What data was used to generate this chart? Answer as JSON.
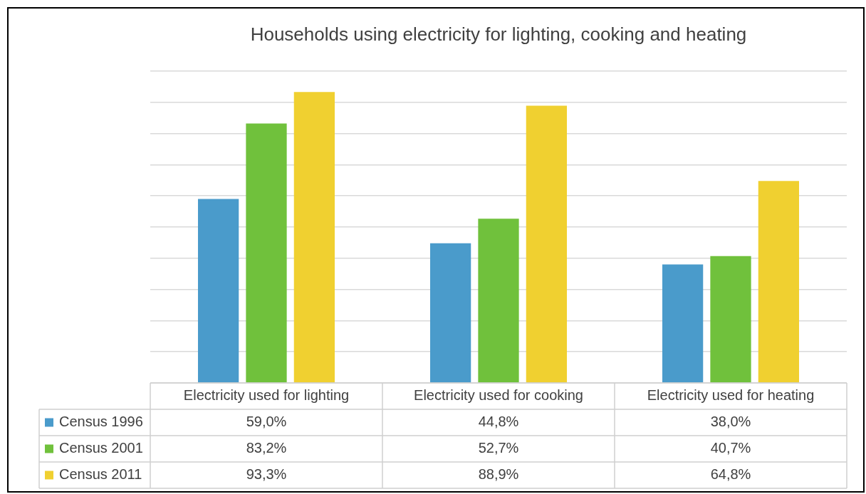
{
  "chart_data": {
    "type": "bar",
    "title": "Households using electricity for lighting, cooking and heating",
    "categories": [
      "Electricity used for lighting",
      "Electricity used for cooking",
      "Electricity used for heating"
    ],
    "series": [
      {
        "name": "Census 1996",
        "color": "#4a9bcb",
        "values": [
          59.0,
          44.8,
          38.0
        ],
        "value_labels": [
          "59,0%",
          "44,8%",
          "38,0%"
        ]
      },
      {
        "name": "Census 2001",
        "color": "#70c13c",
        "values": [
          83.2,
          52.7,
          40.7
        ],
        "value_labels": [
          "83,2%",
          "52,7%",
          "40,7%"
        ]
      },
      {
        "name": "Census 2011",
        "color": "#f0d030",
        "values": [
          93.3,
          88.9,
          64.8
        ],
        "value_labels": [
          "93,3%",
          "88,9%",
          "64,8%"
        ]
      }
    ],
    "ylim": [
      0,
      100
    ],
    "yticks": [
      {
        "value": 0,
        "label": null
      },
      {
        "value": 10,
        "label": null
      },
      {
        "value": 20,
        "label": null
      },
      {
        "value": 30,
        "label": null
      },
      {
        "value": 40,
        "label": null
      },
      {
        "value": 50,
        "label": null
      },
      {
        "value": 60,
        "label": null
      },
      {
        "value": 70,
        "label": null
      },
      {
        "value": 80,
        "label": null
      },
      {
        "value": 90,
        "label": null
      },
      {
        "value": 100,
        "label": null
      }
    ],
    "tick_labels": "x",
    "grid": "y",
    "legend": "bottom"
  }
}
